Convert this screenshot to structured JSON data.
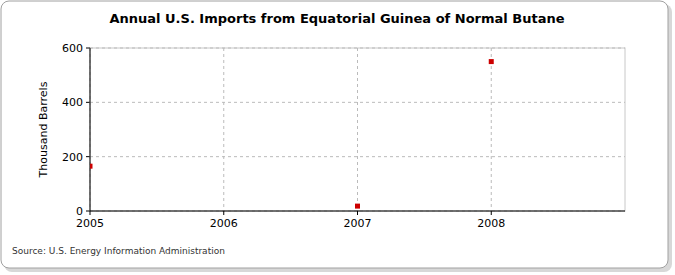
{
  "chart_data": {
    "type": "scatter",
    "title": "Annual U.S. Imports from Equatorial Guinea of Normal Butane",
    "y_label": "Thousand Barrels",
    "source": "Source: U.S. Energy Information Administration",
    "x": [
      2005,
      2007,
      2008
    ],
    "values": [
      165,
      18,
      550
    ],
    "color": "#cc0000",
    "marker": "square",
    "xlim": [
      2005,
      2009
    ],
    "xticks": [
      2005,
      2006,
      2007,
      2008
    ],
    "ylim": [
      0,
      600
    ],
    "yticks": [
      0,
      200,
      400,
      600
    ],
    "grid": true
  }
}
